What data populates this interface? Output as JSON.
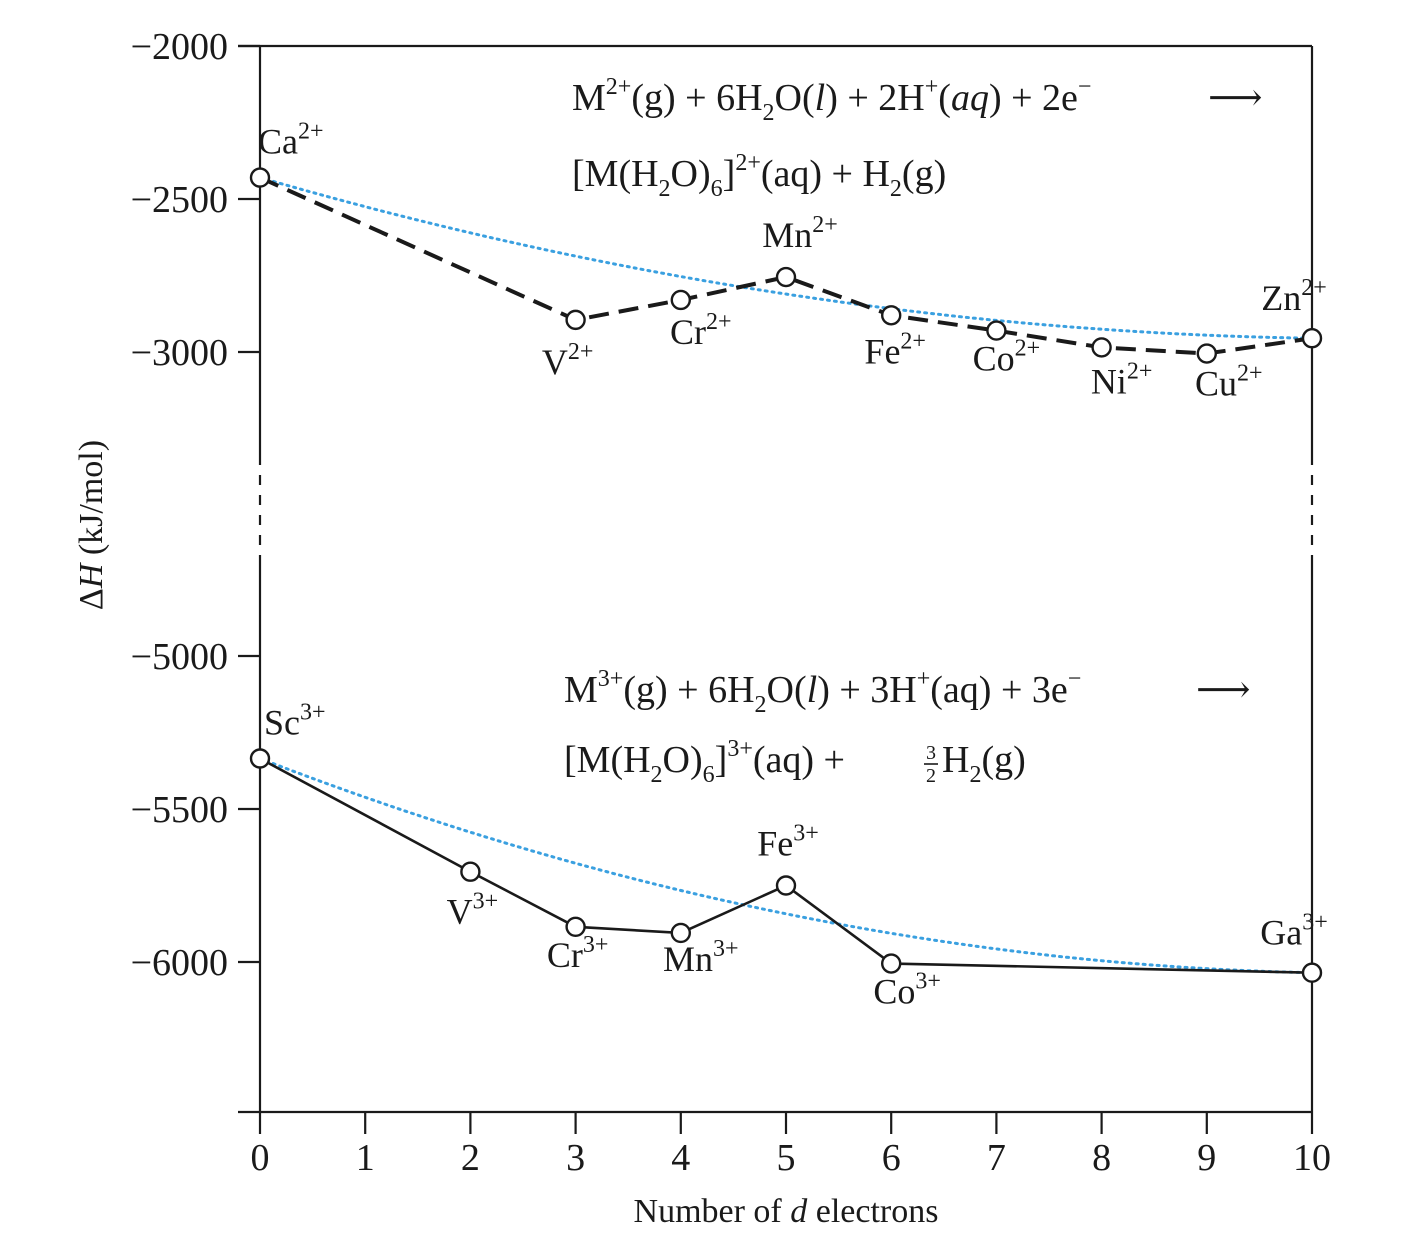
{
  "chart_data": {
    "type": "line",
    "xlabel": "Number of d electrons",
    "xlabel_parts": [
      "Number of ",
      "d",
      " electrons"
    ],
    "ylabel": "ΔH (kJ/mol)",
    "ylabel_parts": [
      "Δ",
      "H",
      " (kJ/mol)"
    ],
    "x_ticks": [
      0,
      1,
      2,
      3,
      4,
      5,
      6,
      7,
      8,
      9,
      10
    ],
    "y_ticks": [
      -2000,
      -2500,
      -3000,
      -5000,
      -5500,
      -6000
    ],
    "ylim_upper_panel": [
      -3300,
      -2000
    ],
    "ylim_lower_panel": [
      -6500,
      -5000
    ],
    "axis_break": true,
    "grid": false,
    "colors": {
      "axis": "#1a1a1a",
      "trend": "#3aa0e0",
      "marker_fill": "#ffffff"
    },
    "series": [
      {
        "charge": "2+",
        "line_style": "dashed",
        "x": [
          0,
          3,
          4,
          5,
          6,
          7,
          8,
          9,
          10
        ],
        "y": [
          -2430,
          -2895,
          -2830,
          -2755,
          -2880,
          -2930,
          -2985,
          -3005,
          -2955
        ],
        "labels": [
          "Ca",
          "V",
          "Cr",
          "Mn",
          "Fe",
          "Co",
          "Ni",
          "Cu",
          "Zn"
        ],
        "trend_line": {
          "style": "dotted",
          "from": [
            0,
            -2430
          ],
          "to": [
            10,
            -2955
          ]
        }
      },
      {
        "charge": "3+",
        "line_style": "solid",
        "x": [
          0,
          2,
          3,
          4,
          5,
          6,
          10
        ],
        "y": [
          -5335,
          -5705,
          -5885,
          -5905,
          -5750,
          -6005,
          -6035
        ],
        "labels": [
          "Sc",
          "V",
          "Cr",
          "Mn",
          "Fe",
          "Co",
          "Ga"
        ],
        "trend_line": {
          "style": "dotted",
          "from": [
            0,
            -5335
          ],
          "to": [
            10,
            -6035
          ]
        }
      }
    ],
    "annotations": {
      "eq2_line1": {
        "M": "M",
        "M_sup": "2+",
        "g1": "(g) + 6H",
        "g1_it": "g",
        "h2o_sub": "2",
        "o_part": "O(",
        "l_it": "l",
        "o_end": ")  +  2H",
        "hplus_sup": "+",
        "aq_open": "(",
        "aq_it": "aq",
        "aq_close": ")  + 2e",
        "e_sup": "−",
        "arrow": "⟶"
      },
      "eq2_line2": {
        "open": "[M(H",
        "sub2": "2",
        "mid": "O)",
        "sub6": "6",
        "close": "]",
        "sup": "2+",
        "aq": "(aq)  + H",
        "h2sub": "2",
        "g": "(g)"
      },
      "eq3_line1": {
        "M": "M",
        "M_sup": "3+",
        "g1": "(g) + 6H",
        "h2o_sub": "2",
        "o_part": "O(",
        "l_it": "l",
        "o_end": ")  + 3H",
        "hplus_sup": "+",
        "aq": "(aq)  + 3e",
        "e_sup": "−",
        "arrow": "⟶"
      },
      "eq3_line2": {
        "open": "[M(H",
        "sub2": "2",
        "mid": "O)",
        "sub6": "6",
        "close": "]",
        "sup": "3+",
        "aq": "(aq)  + ",
        "frac_num": "3",
        "frac_den": "2",
        "h": " H",
        "h2sub": "2",
        "g": "(g)"
      }
    }
  }
}
